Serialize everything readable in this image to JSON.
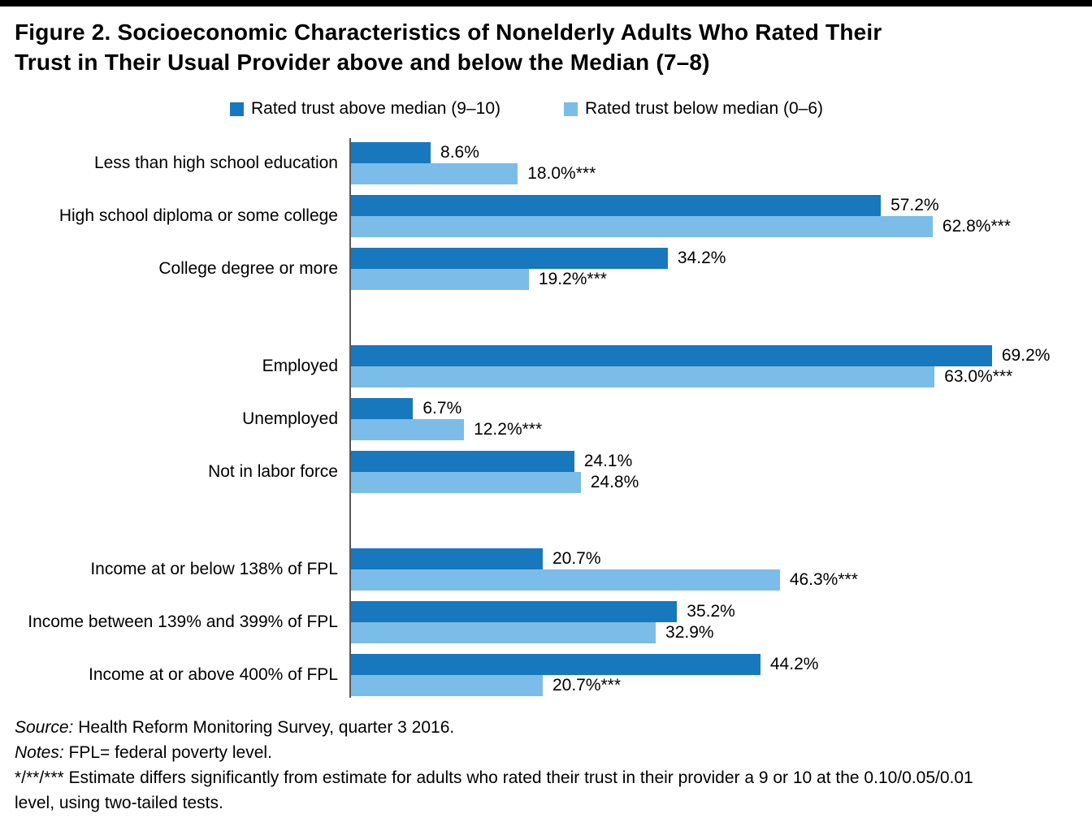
{
  "title": {
    "line1": "Figure 2. Socioeconomic Characteristics of Nonelderly Adults Who Rated Their",
    "line2": "Trust in Their Usual Provider above and below the Median (7–8)"
  },
  "legend": [
    {
      "label": "Rated trust above median (9–10)",
      "color": "#1778BE"
    },
    {
      "label": "Rated trust below median (0–6)",
      "color": "#7BBDE8"
    }
  ],
  "colors": {
    "above_median_bar": "#1778BE",
    "below_median_bar": "#7BBDE8",
    "axis_line": "#58595B",
    "top_rule": "#000000"
  },
  "chart_data": {
    "type": "bar",
    "orientation": "horizontal",
    "xlim": [
      0,
      80
    ],
    "grid": false,
    "legend_position": "top",
    "series": [
      {
        "name": "Rated trust above median (9–10)",
        "color": "#1778BE"
      },
      {
        "name": "Rated trust below median (0–6)",
        "color": "#7BBDE8"
      }
    ],
    "groups": [
      {
        "name": "education",
        "rows": [
          {
            "category": "Less than high school education",
            "above": 8.6,
            "above_label": "8.6%",
            "below": 18.0,
            "below_label": "18.0%***"
          },
          {
            "category": "High school diploma or some college",
            "above": 57.2,
            "above_label": "57.2%",
            "below": 62.8,
            "below_label": "62.8%***"
          },
          {
            "category": "College degree or more",
            "above": 34.2,
            "above_label": "34.2%",
            "below": 19.2,
            "below_label": "19.2%***"
          }
        ]
      },
      {
        "name": "employment",
        "rows": [
          {
            "category": "Employed",
            "above": 69.2,
            "above_label": "69.2%",
            "below": 63.0,
            "below_label": "63.0%***"
          },
          {
            "category": "Unemployed",
            "above": 6.7,
            "above_label": "6.7%",
            "below": 12.2,
            "below_label": "12.2%***"
          },
          {
            "category": "Not in labor force",
            "above": 24.1,
            "above_label": "24.1%",
            "below": 24.8,
            "below_label": "24.8%"
          }
        ]
      },
      {
        "name": "income",
        "rows": [
          {
            "category": "Income at or below 138% of FPL",
            "above": 20.7,
            "above_label": "20.7%",
            "below": 46.3,
            "below_label": "46.3%***"
          },
          {
            "category": "Income between 139% and 399% of FPL",
            "above": 35.2,
            "above_label": "35.2%",
            "below": 32.9,
            "below_label": "32.9%"
          },
          {
            "category": "Income at or above 400% of FPL",
            "above": 44.2,
            "above_label": "44.2%",
            "below": 20.7,
            "below_label": "20.7%***"
          }
        ]
      }
    ]
  },
  "notes": {
    "source_prefix": "Source:",
    "source_text": " Health Reform Monitoring Survey, quarter 3 2016.",
    "notes_prefix": "Notes:",
    "notes_text": " FPL= federal poverty level.",
    "significance": "*/**/*** Estimate differs significantly from estimate for adults who rated their trust in their provider a 9 or 10 at the 0.10/0.05/0.01 level, using two-tailed tests."
  }
}
